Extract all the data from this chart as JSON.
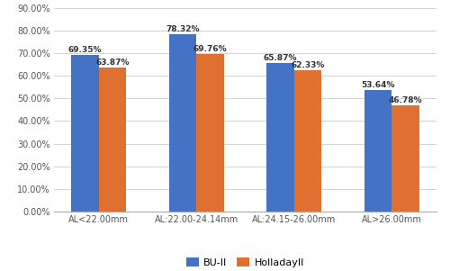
{
  "categories": [
    "AL<22.00mm",
    "AL:22.00-24.14mm",
    "AL:24.15-26.00mm",
    "AL>26.00mm"
  ],
  "barii_values": [
    69.35,
    78.32,
    65.87,
    53.64
  ],
  "holladay_values": [
    63.87,
    69.76,
    62.33,
    46.78
  ],
  "barii_labels": [
    "69.35%",
    "78.32%",
    "65.87%",
    "53.64%"
  ],
  "holladay_labels": [
    "63.87%",
    "69.76%",
    "62.33%",
    "46.78%"
  ],
  "bar_color_blue": "#4472C4",
  "bar_color_orange": "#E07030",
  "legend_labels": [
    "BU-II",
    "HolladayII"
  ],
  "ylim": [
    0,
    90
  ],
  "yticks": [
    0,
    10,
    20,
    30,
    40,
    50,
    60,
    70,
    80,
    90
  ],
  "ytick_labels": [
    "0.00%",
    "10.00%",
    "20.00%",
    "30.00%",
    "40.00%",
    "50.00%",
    "60.00%",
    "70.00%",
    "80.00%",
    "90.00%"
  ],
  "bar_width": 0.28,
  "label_fontsize": 6.5,
  "tick_fontsize": 7,
  "legend_fontsize": 8,
  "background_color": "#ffffff",
  "grid_color": "#d3d3d3"
}
